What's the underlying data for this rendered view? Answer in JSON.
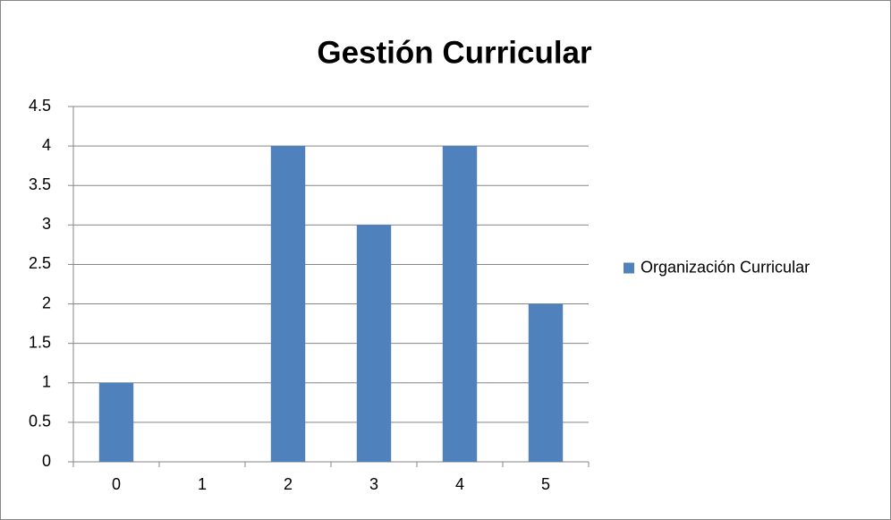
{
  "chart_data": {
    "type": "bar",
    "title": "Gestión Curricular",
    "categories": [
      "0",
      "1",
      "2",
      "3",
      "4",
      "5"
    ],
    "series": [
      {
        "name": "Organización Curricular",
        "color": "#4f81bd",
        "values": [
          1,
          0,
          4,
          3,
          4,
          2
        ]
      }
    ],
    "ylim": [
      0,
      4.5
    ],
    "yticks": [
      0,
      0.5,
      1,
      1.5,
      2,
      2.5,
      3,
      3.5,
      4,
      4.5
    ],
    "grid": true,
    "legend": "right"
  }
}
